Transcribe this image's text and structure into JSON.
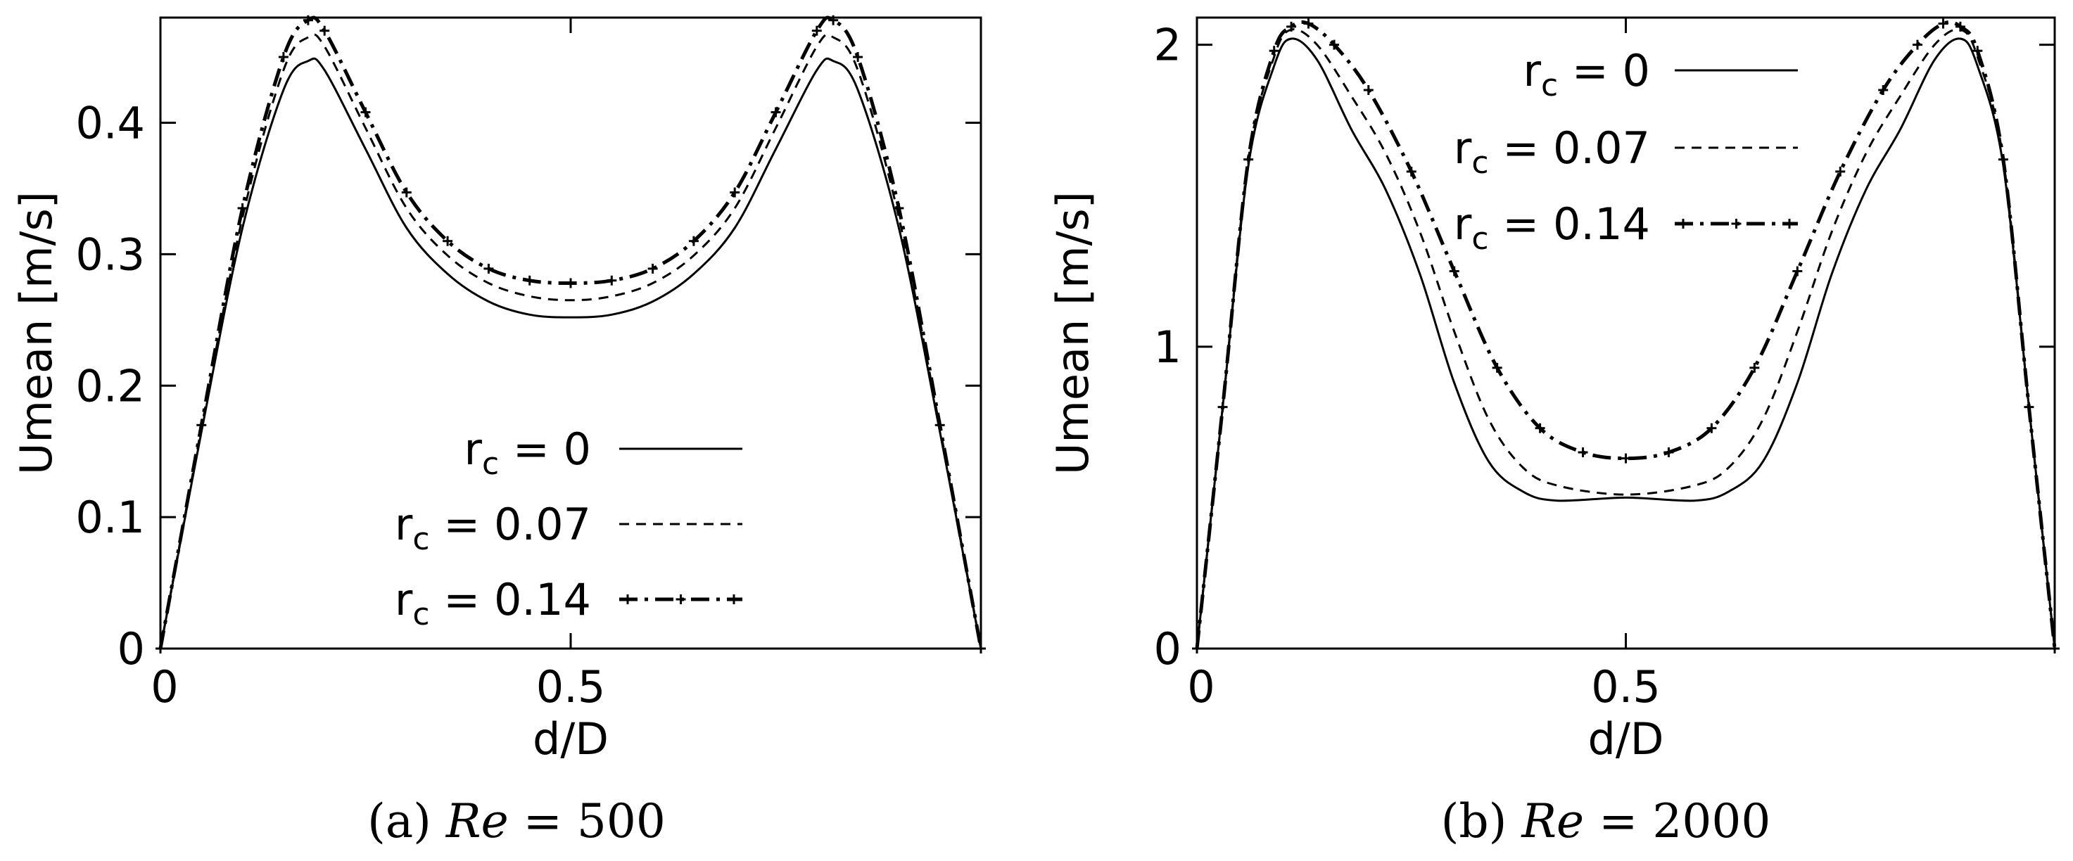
{
  "chart_data": [
    {
      "type": "line",
      "title": "",
      "caption_label": "(a)",
      "caption_var": "Re",
      "caption_rest": " = 500",
      "xlabel": "d/D",
      "ylabel": "Umean [m/s]",
      "xlim": [
        0,
        1
      ],
      "ylim": [
        0,
        0.48
      ],
      "xticks": [
        0,
        0.5
      ],
      "xtick_labels": [
        "0",
        "0.5"
      ],
      "yticks": [
        0,
        0.1,
        0.2,
        0.3,
        0.4
      ],
      "ytick_labels": [
        "0",
        "0.1",
        "0.2",
        "0.3",
        "0.4"
      ],
      "grid": false,
      "legend_position": "bottom-right",
      "series": [
        {
          "name": "r_c = 0",
          "label_var": "r",
          "label_sub": "c",
          "label_rest": " = 0",
          "style": "solid",
          "x": [
            0,
            0.05,
            0.1,
            0.15,
            0.18,
            0.2,
            0.25,
            0.3,
            0.35,
            0.4,
            0.45,
            0.5,
            0.55,
            0.6,
            0.65,
            0.7,
            0.75,
            0.8,
            0.82,
            0.85,
            0.9,
            0.95,
            1.0
          ],
          "values": [
            0,
            0.165,
            0.32,
            0.425,
            0.447,
            0.44,
            0.38,
            0.32,
            0.285,
            0.264,
            0.254,
            0.252,
            0.254,
            0.264,
            0.285,
            0.32,
            0.38,
            0.44,
            0.447,
            0.425,
            0.32,
            0.165,
            0
          ]
        },
        {
          "name": "r_c = 0.07",
          "label_var": "r",
          "label_sub": "c",
          "label_rest": " = 0.07",
          "style": "dashed",
          "x": [
            0,
            0.05,
            0.1,
            0.15,
            0.18,
            0.2,
            0.25,
            0.3,
            0.35,
            0.4,
            0.45,
            0.5,
            0.55,
            0.6,
            0.65,
            0.7,
            0.75,
            0.8,
            0.82,
            0.85,
            0.9,
            0.95,
            1.0
          ],
          "values": [
            0,
            0.168,
            0.328,
            0.44,
            0.465,
            0.458,
            0.396,
            0.335,
            0.299,
            0.278,
            0.268,
            0.265,
            0.268,
            0.278,
            0.299,
            0.335,
            0.396,
            0.458,
            0.465,
            0.44,
            0.328,
            0.168,
            0
          ]
        },
        {
          "name": "r_c = 0.14",
          "label_var": "r",
          "label_sub": "c",
          "label_rest": " = 0.14",
          "style": "dashdot-marker",
          "x": [
            0,
            0.05,
            0.1,
            0.15,
            0.18,
            0.2,
            0.25,
            0.3,
            0.35,
            0.4,
            0.45,
            0.5,
            0.55,
            0.6,
            0.65,
            0.7,
            0.75,
            0.8,
            0.82,
            0.85,
            0.9,
            0.95,
            1.0
          ],
          "values": [
            0,
            0.17,
            0.335,
            0.45,
            0.478,
            0.47,
            0.408,
            0.347,
            0.31,
            0.289,
            0.28,
            0.278,
            0.28,
            0.289,
            0.31,
            0.347,
            0.408,
            0.47,
            0.478,
            0.45,
            0.335,
            0.17,
            0
          ]
        }
      ]
    },
    {
      "type": "line",
      "title": "",
      "caption_label": "(b)",
      "caption_var": "Re",
      "caption_rest": " = 2000",
      "xlabel": "d/D",
      "ylabel": "Umean [m/s]",
      "xlim": [
        0,
        1
      ],
      "ylim": [
        0,
        2.09
      ],
      "xticks": [
        0,
        0.5
      ],
      "xtick_labels": [
        "0",
        "0.5"
      ],
      "yticks": [
        0,
        1,
        2
      ],
      "ytick_labels": [
        "0",
        "1",
        "2"
      ],
      "grid": false,
      "legend_position": "top-right",
      "series": [
        {
          "name": "r_c = 0",
          "label_var": "r",
          "label_sub": "c",
          "label_rest": " = 0",
          "style": "solid",
          "x": [
            0,
            0.03,
            0.06,
            0.09,
            0.11,
            0.14,
            0.18,
            0.22,
            0.26,
            0.3,
            0.34,
            0.38,
            0.42,
            0.5,
            0.58,
            0.62,
            0.66,
            0.7,
            0.74,
            0.78,
            0.82,
            0.86,
            0.89,
            0.91,
            0.94,
            0.97,
            1.0
          ],
          "values": [
            0,
            0.8,
            1.6,
            1.93,
            2.02,
            1.95,
            1.72,
            1.52,
            1.24,
            0.88,
            0.62,
            0.52,
            0.49,
            0.5,
            0.49,
            0.52,
            0.62,
            0.88,
            1.24,
            1.52,
            1.72,
            1.95,
            2.02,
            1.93,
            1.6,
            0.8,
            0
          ]
        },
        {
          "name": "r_c = 0.07",
          "label_var": "r",
          "label_sub": "c",
          "label_rest": " = 0.07",
          "style": "dashed",
          "x": [
            0,
            0.03,
            0.06,
            0.09,
            0.11,
            0.14,
            0.18,
            0.22,
            0.26,
            0.3,
            0.34,
            0.38,
            0.42,
            0.5,
            0.58,
            0.62,
            0.66,
            0.7,
            0.74,
            0.78,
            0.82,
            0.86,
            0.89,
            0.91,
            0.94,
            0.97,
            1.0
          ],
          "values": [
            0,
            0.8,
            1.62,
            1.96,
            2.05,
            2.0,
            1.83,
            1.64,
            1.38,
            1.05,
            0.76,
            0.6,
            0.54,
            0.51,
            0.54,
            0.6,
            0.76,
            1.05,
            1.38,
            1.64,
            1.83,
            2.0,
            2.05,
            1.96,
            1.62,
            0.8,
            0
          ]
        },
        {
          "name": "r_c = 0.14",
          "label_var": "r",
          "label_sub": "c",
          "label_rest": " = 0.14",
          "style": "dashdot-marker",
          "x": [
            0,
            0.03,
            0.06,
            0.09,
            0.11,
            0.13,
            0.16,
            0.2,
            0.25,
            0.3,
            0.35,
            0.4,
            0.45,
            0.5,
            0.55,
            0.6,
            0.65,
            0.7,
            0.75,
            0.8,
            0.84,
            0.87,
            0.89,
            0.91,
            0.94,
            0.97,
            1.0
          ],
          "values": [
            0,
            0.8,
            1.62,
            1.98,
            2.06,
            2.07,
            2.0,
            1.85,
            1.58,
            1.25,
            0.93,
            0.73,
            0.65,
            0.63,
            0.65,
            0.73,
            0.93,
            1.25,
            1.58,
            1.85,
            2.0,
            2.07,
            2.06,
            1.98,
            1.62,
            0.8,
            0
          ]
        }
      ]
    }
  ]
}
